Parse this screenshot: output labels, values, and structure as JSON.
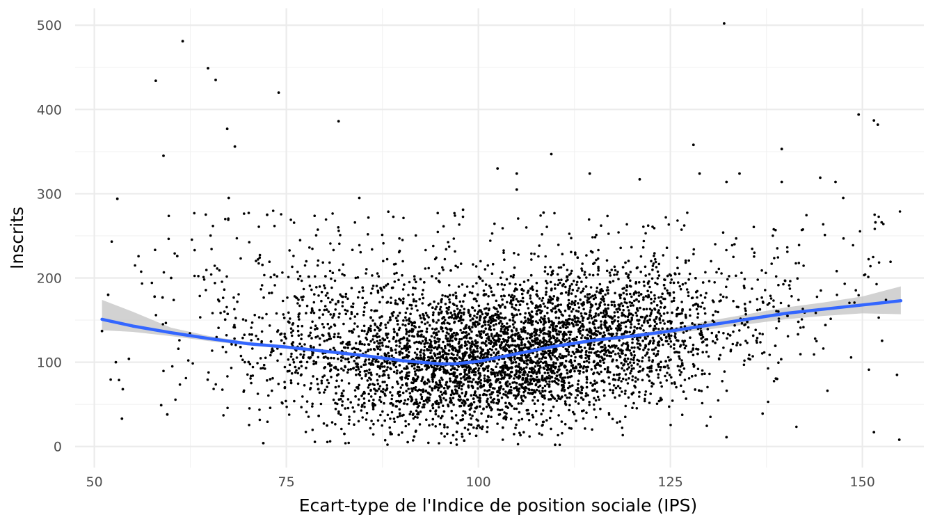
{
  "chart_data": {
    "type": "scatter",
    "xlabel": "Ecart-type de l'Indice de position sociale (IPS)",
    "ylabel": "Inscrits",
    "xlim": [
      47.5,
      158
    ],
    "ylim": [
      -25,
      520
    ],
    "x_ticks": [
      50,
      75,
      100,
      125,
      150
    ],
    "y_ticks": [
      0,
      100,
      200,
      300,
      400,
      500
    ],
    "grid": true,
    "point_color": "#000000",
    "smooth": {
      "method": "loess",
      "color": "#3366FF",
      "ribbon_color": "#bfbfbf",
      "x": [
        51,
        55,
        60,
        65,
        70,
        75,
        80,
        85,
        90,
        95,
        97,
        100,
        105,
        110,
        115,
        120,
        125,
        130,
        135,
        140,
        145,
        150,
        155
      ],
      "y": [
        151,
        143,
        135,
        128,
        122,
        118,
        113,
        108,
        102,
        98,
        98,
        101,
        110,
        119,
        126,
        131,
        137,
        144,
        151,
        158,
        163,
        168,
        173
      ],
      "lower": [
        138,
        136,
        131,
        125,
        120,
        116,
        111,
        107,
        100,
        96,
        96,
        99,
        108,
        117,
        124,
        129,
        134,
        139,
        145,
        151,
        155,
        158,
        157
      ],
      "upper": [
        174,
        160,
        141,
        131,
        124,
        120,
        115,
        110,
        104,
        100,
        100,
        103,
        112,
        121,
        128,
        133,
        140,
        149,
        157,
        165,
        171,
        178,
        190
      ]
    },
    "highlighted_points": [
      {
        "x": 132,
        "y": 502
      },
      {
        "x": 61.5,
        "y": 481
      },
      {
        "x": 64.8,
        "y": 449
      },
      {
        "x": 65.8,
        "y": 435
      },
      {
        "x": 58,
        "y": 434
      },
      {
        "x": 74,
        "y": 420
      },
      {
        "x": 149.5,
        "y": 394
      },
      {
        "x": 151.5,
        "y": 387
      },
      {
        "x": 152,
        "y": 382
      },
      {
        "x": 81.8,
        "y": 386
      },
      {
        "x": 67.3,
        "y": 377
      },
      {
        "x": 128,
        "y": 358
      },
      {
        "x": 68.3,
        "y": 356
      },
      {
        "x": 139.5,
        "y": 353
      },
      {
        "x": 109.5,
        "y": 347
      },
      {
        "x": 59,
        "y": 345
      },
      {
        "x": 102.5,
        "y": 330
      },
      {
        "x": 105,
        "y": 324
      },
      {
        "x": 134,
        "y": 324
      },
      {
        "x": 128.8,
        "y": 324
      },
      {
        "x": 114.5,
        "y": 324
      },
      {
        "x": 121,
        "y": 317
      },
      {
        "x": 132.3,
        "y": 314
      },
      {
        "x": 139.5,
        "y": 314
      },
      {
        "x": 146.5,
        "y": 314
      },
      {
        "x": 144.5,
        "y": 319
      },
      {
        "x": 53,
        "y": 294
      },
      {
        "x": 67.5,
        "y": 295
      },
      {
        "x": 84.5,
        "y": 295
      },
      {
        "x": 147.5,
        "y": 295
      },
      {
        "x": 98,
        "y": 281
      },
      {
        "x": 105,
        "y": 305
      },
      {
        "x": 72.5,
        "y": 275
      },
      {
        "x": 151.7,
        "y": 266
      },
      {
        "x": 152.5,
        "y": 266
      },
      {
        "x": 154.5,
        "y": 85
      },
      {
        "x": 154.8,
        "y": 8
      },
      {
        "x": 72,
        "y": 4
      },
      {
        "x": 51,
        "y": 137
      },
      {
        "x": 51.8,
        "y": 180
      },
      {
        "x": 53.7,
        "y": 68
      },
      {
        "x": 53.6,
        "y": 33
      },
      {
        "x": 54.5,
        "y": 104
      },
      {
        "x": 52.8,
        "y": 100
      },
      {
        "x": 58.7,
        "y": 49
      },
      {
        "x": 59.5,
        "y": 38
      },
      {
        "x": 60,
        "y": 200
      },
      {
        "x": 60.8,
        "y": 226
      },
      {
        "x": 151.5,
        "y": 17
      },
      {
        "x": 110,
        "y": 2
      },
      {
        "x": 132.3,
        "y": 11
      }
    ]
  }
}
